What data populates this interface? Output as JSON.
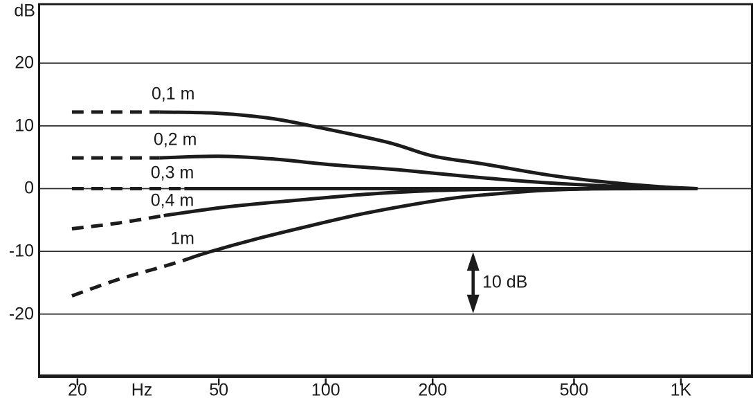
{
  "chart_data": {
    "type": "line",
    "title": "",
    "ylabel": "dB",
    "x_unit_label": "Hz",
    "x_scale": "log",
    "grid": "horizontal",
    "legend_position": "inline-labels",
    "x_ticks": [
      20,
      50,
      100,
      200,
      500,
      1000
    ],
    "x_tick_labels": [
      "20",
      "50",
      "100",
      "200",
      "500",
      "1K"
    ],
    "y_ticks": [
      20,
      10,
      0,
      -10,
      -20
    ],
    "y_tick_labels": [
      "20",
      "10",
      "0",
      "-10",
      "-20"
    ],
    "xlim": [
      15.6,
      1584
    ],
    "ylim": [
      -29.9,
      29.4
    ],
    "series": [
      {
        "name": "0,1 m",
        "label_pos": {
          "f": 37.2,
          "db": 15.1
        },
        "dashed": [
          [
            19.3,
            12.2
          ],
          [
            26,
            12.2
          ],
          [
            34,
            12.2
          ]
        ],
        "solid": [
          [
            34,
            12.2
          ],
          [
            50,
            12.0
          ],
          [
            70,
            11.2
          ],
          [
            91,
            10.0
          ],
          [
            149,
            7.4
          ],
          [
            200,
            5.2
          ],
          [
            280,
            3.9
          ],
          [
            420,
            2.2
          ],
          [
            600,
            1.1
          ],
          [
            870,
            0.3
          ],
          [
            1114,
            0
          ]
        ]
      },
      {
        "name": "0,2 m",
        "label_pos": {
          "f": 37.7,
          "db": 7.8
        },
        "dashed": [
          [
            19.3,
            4.9
          ],
          [
            26,
            4.9
          ],
          [
            34,
            4.9
          ]
        ],
        "solid": [
          [
            34,
            4.9
          ],
          [
            50,
            5.15
          ],
          [
            70,
            4.75
          ],
          [
            104,
            3.8
          ],
          [
            160,
            3.0
          ],
          [
            255,
            1.9
          ],
          [
            400,
            1.0
          ],
          [
            600,
            0.45
          ],
          [
            870,
            0.12
          ],
          [
            1114,
            0
          ]
        ]
      },
      {
        "name": "0,3 m",
        "label_pos": {
          "f": 37.0,
          "db": 2.5
        },
        "dashed": [
          [
            19.3,
            0
          ],
          [
            40,
            0
          ]
        ],
        "solid": [
          [
            40,
            0
          ],
          [
            300,
            0
          ],
          [
            1114,
            0
          ]
        ]
      },
      {
        "name": "0,4 m",
        "label_pos": {
          "f": 37.0,
          "db": -1.9
        },
        "dashed": [
          [
            19.3,
            -6.4
          ],
          [
            26,
            -5.5
          ],
          [
            35,
            -4.3
          ]
        ],
        "solid": [
          [
            35,
            -4.3
          ],
          [
            53,
            -2.9
          ],
          [
            83,
            -1.85
          ],
          [
            130,
            -0.9
          ],
          [
            195,
            -0.35
          ],
          [
            300,
            -0.08
          ],
          [
            500,
            0
          ],
          [
            1114,
            0
          ]
        ]
      },
      {
        "name": "1m",
        "label_pos": {
          "f": 39.5,
          "db": -8.0
        },
        "dashed": [
          [
            19.3,
            -17.1
          ],
          [
            26,
            -14.5
          ],
          [
            35,
            -12.4
          ],
          [
            40,
            -11.4
          ]
        ],
        "solid": [
          [
            40,
            -11.4
          ],
          [
            47,
            -10.1
          ],
          [
            64,
            -8.0
          ],
          [
            90,
            -5.95
          ],
          [
            130,
            -3.9
          ],
          [
            220,
            -1.65
          ],
          [
            300,
            -0.85
          ],
          [
            420,
            -0.25
          ],
          [
            560,
            -0.05
          ],
          [
            800,
            0
          ],
          [
            1114,
            0
          ]
        ]
      }
    ],
    "annotation": {
      "label": "10 dB",
      "arrow_f": 260,
      "arrow_from_db": -10,
      "arrow_to_db": -20,
      "label_f": 276,
      "label_db": -14.9
    },
    "colors": {
      "line": "#1c1c1c",
      "grid": "#2e2e2e",
      "text": "#1a1a1a",
      "background": "#ffffff"
    }
  }
}
